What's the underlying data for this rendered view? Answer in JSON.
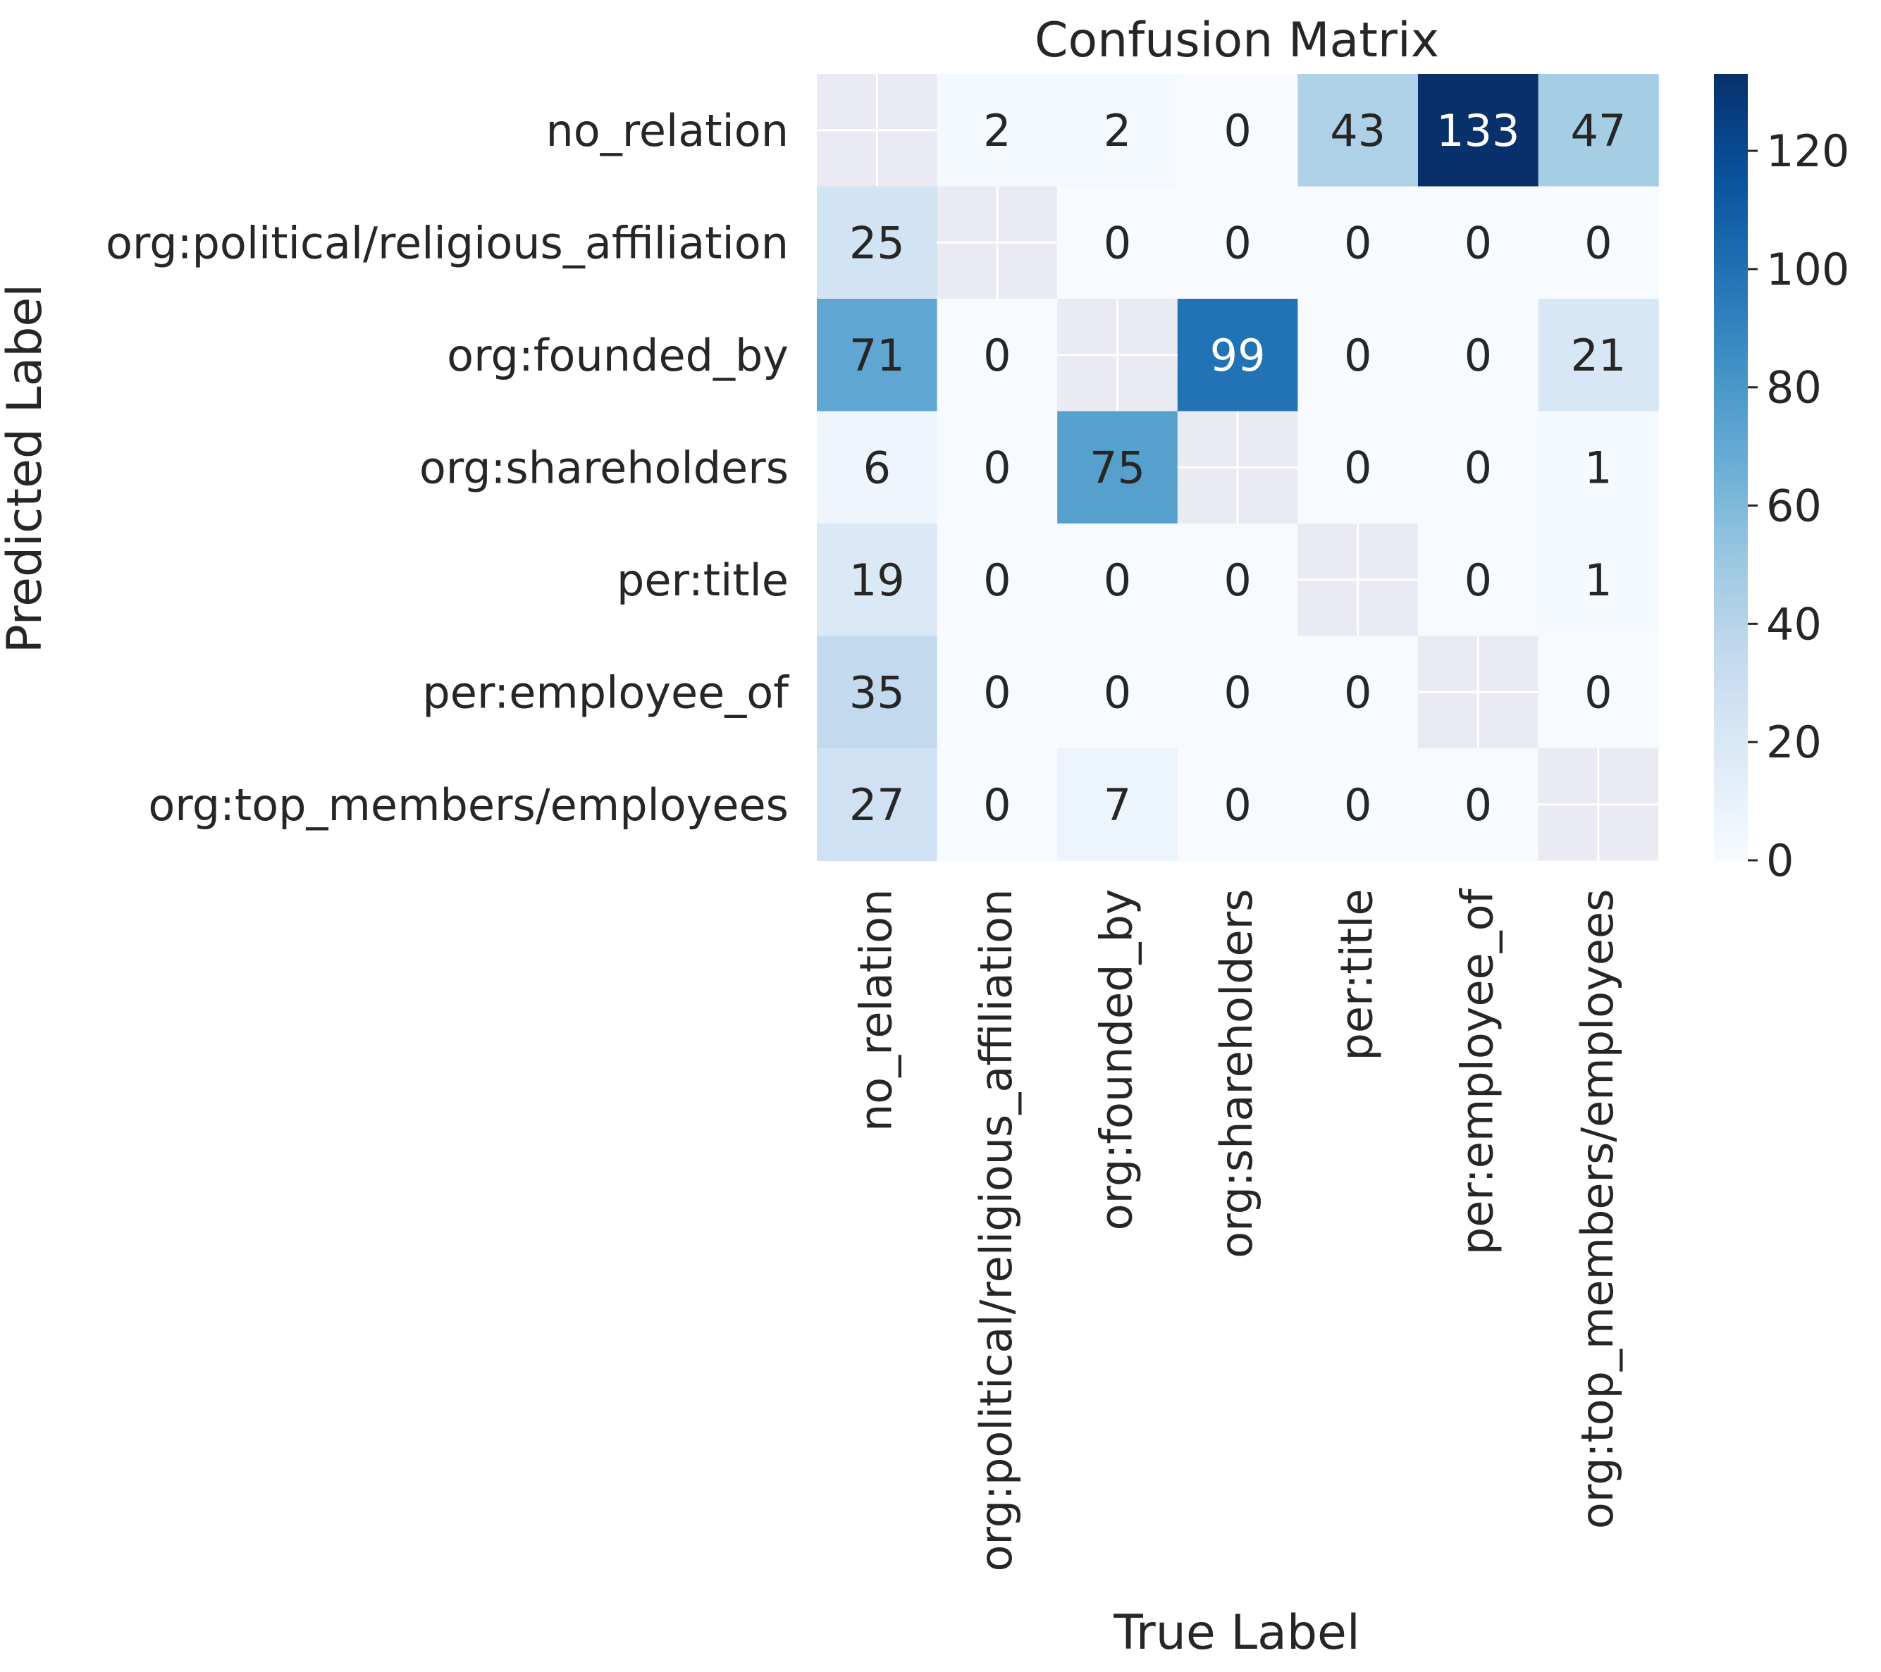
{
  "chart_data": {
    "type": "heatmap",
    "title": "Confusion Matrix",
    "xlabel": "True Label",
    "ylabel": "Predicted Label",
    "categories": [
      "no_relation",
      "org:political/religious_affiliation",
      "org:founded_by",
      "org:shareholders",
      "per:title",
      "per:employee_of",
      "org:top_members/employees"
    ],
    "matrix": [
      [
        null,
        2,
        2,
        0,
        43,
        133,
        47
      ],
      [
        25,
        null,
        0,
        0,
        0,
        0,
        0
      ],
      [
        71,
        0,
        null,
        99,
        0,
        0,
        21
      ],
      [
        6,
        0,
        75,
        null,
        0,
        0,
        1
      ],
      [
        19,
        0,
        0,
        0,
        null,
        0,
        1
      ],
      [
        35,
        0,
        0,
        0,
        0,
        null,
        0
      ],
      [
        27,
        0,
        7,
        0,
        0,
        0,
        null
      ]
    ],
    "colorscale": {
      "name": "Blues",
      "range": [
        0,
        133
      ],
      "ticks": [
        0,
        20,
        40,
        60,
        80,
        100,
        120
      ],
      "tick_labels": [
        "0",
        "20",
        "40",
        "60",
        "80",
        "100",
        "120"
      ],
      "masked_color": "#eaeaf2"
    }
  }
}
